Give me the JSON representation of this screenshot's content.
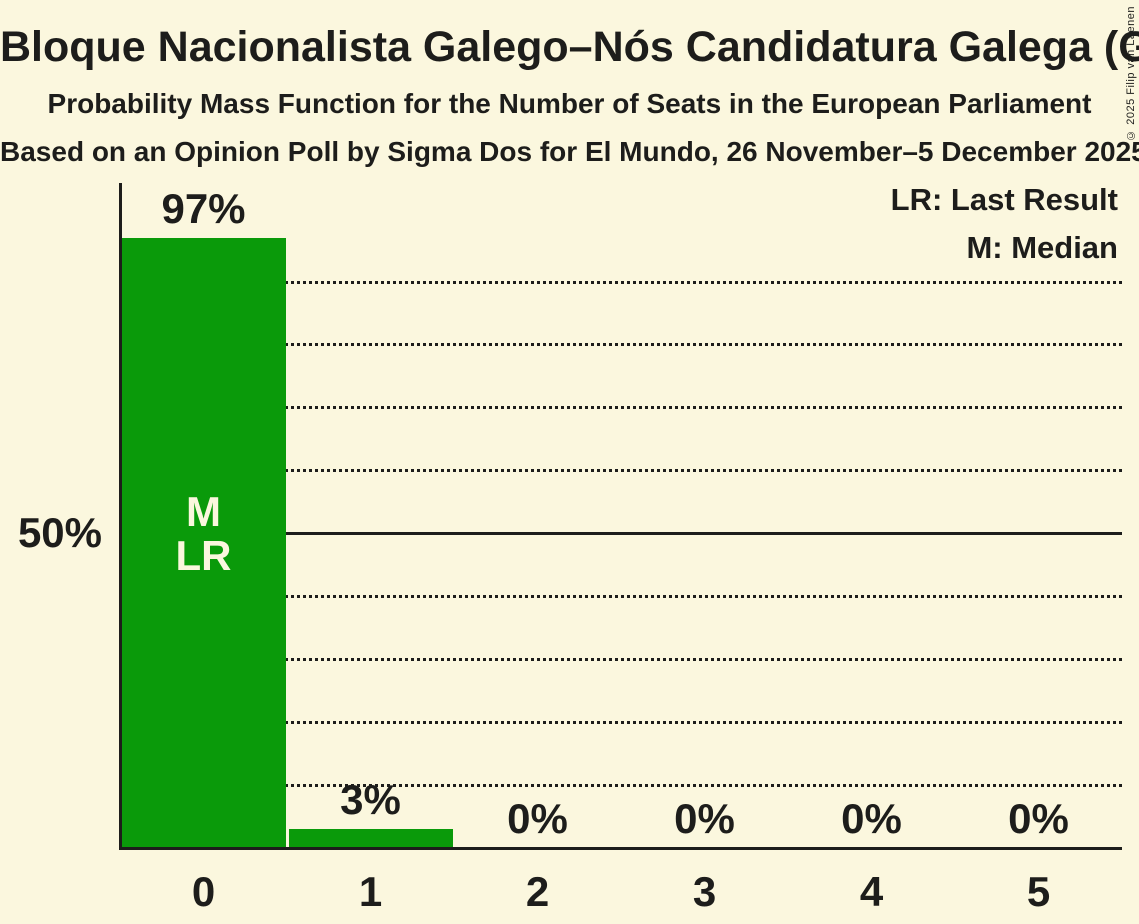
{
  "title": "Bloque Nacionalista Galego–Nós Candidatura Galega (Greens/EFA)",
  "subtitle": "Probability Mass Function for the Number of Seats in the European Parliament",
  "source_line": "Based on an Opinion Poll by Sigma Dos for El Mundo, 26 November–5 December 2025",
  "copyright": "© 2025 Filip van Laenen",
  "legend": {
    "lr": "LR: Last Result",
    "m": "M: Median"
  },
  "y_axis_label": "50%",
  "in_bar_labels": [
    "M",
    "LR"
  ],
  "colors": {
    "background": "#fbf7de",
    "bar": "#0a9a0a",
    "text": "#1d1d1b"
  },
  "chart_data": {
    "type": "bar",
    "title": "Bloque Nacionalista Galego–Nós Candidatura Galega (Greens/EFA) — Probability Mass Function for the Number of Seats in the European Parliament",
    "categories": [
      "0",
      "1",
      "2",
      "3",
      "4",
      "5"
    ],
    "values": [
      97,
      3,
      0,
      0,
      0,
      0
    ],
    "value_labels": [
      "97%",
      "3%",
      "0%",
      "0%",
      "0%",
      "0%"
    ],
    "xlabel": "",
    "ylabel": "",
    "ylim": [
      0,
      100
    ],
    "y_tick_labels": [
      "50%"
    ],
    "dotted_gridlines_pct": [
      10,
      20,
      30,
      40,
      60,
      70,
      80,
      90
    ],
    "solid_gridline_pct": 50,
    "grid": "on",
    "legend_position": "top-right",
    "median_category": "0",
    "last_result_category": "0"
  }
}
